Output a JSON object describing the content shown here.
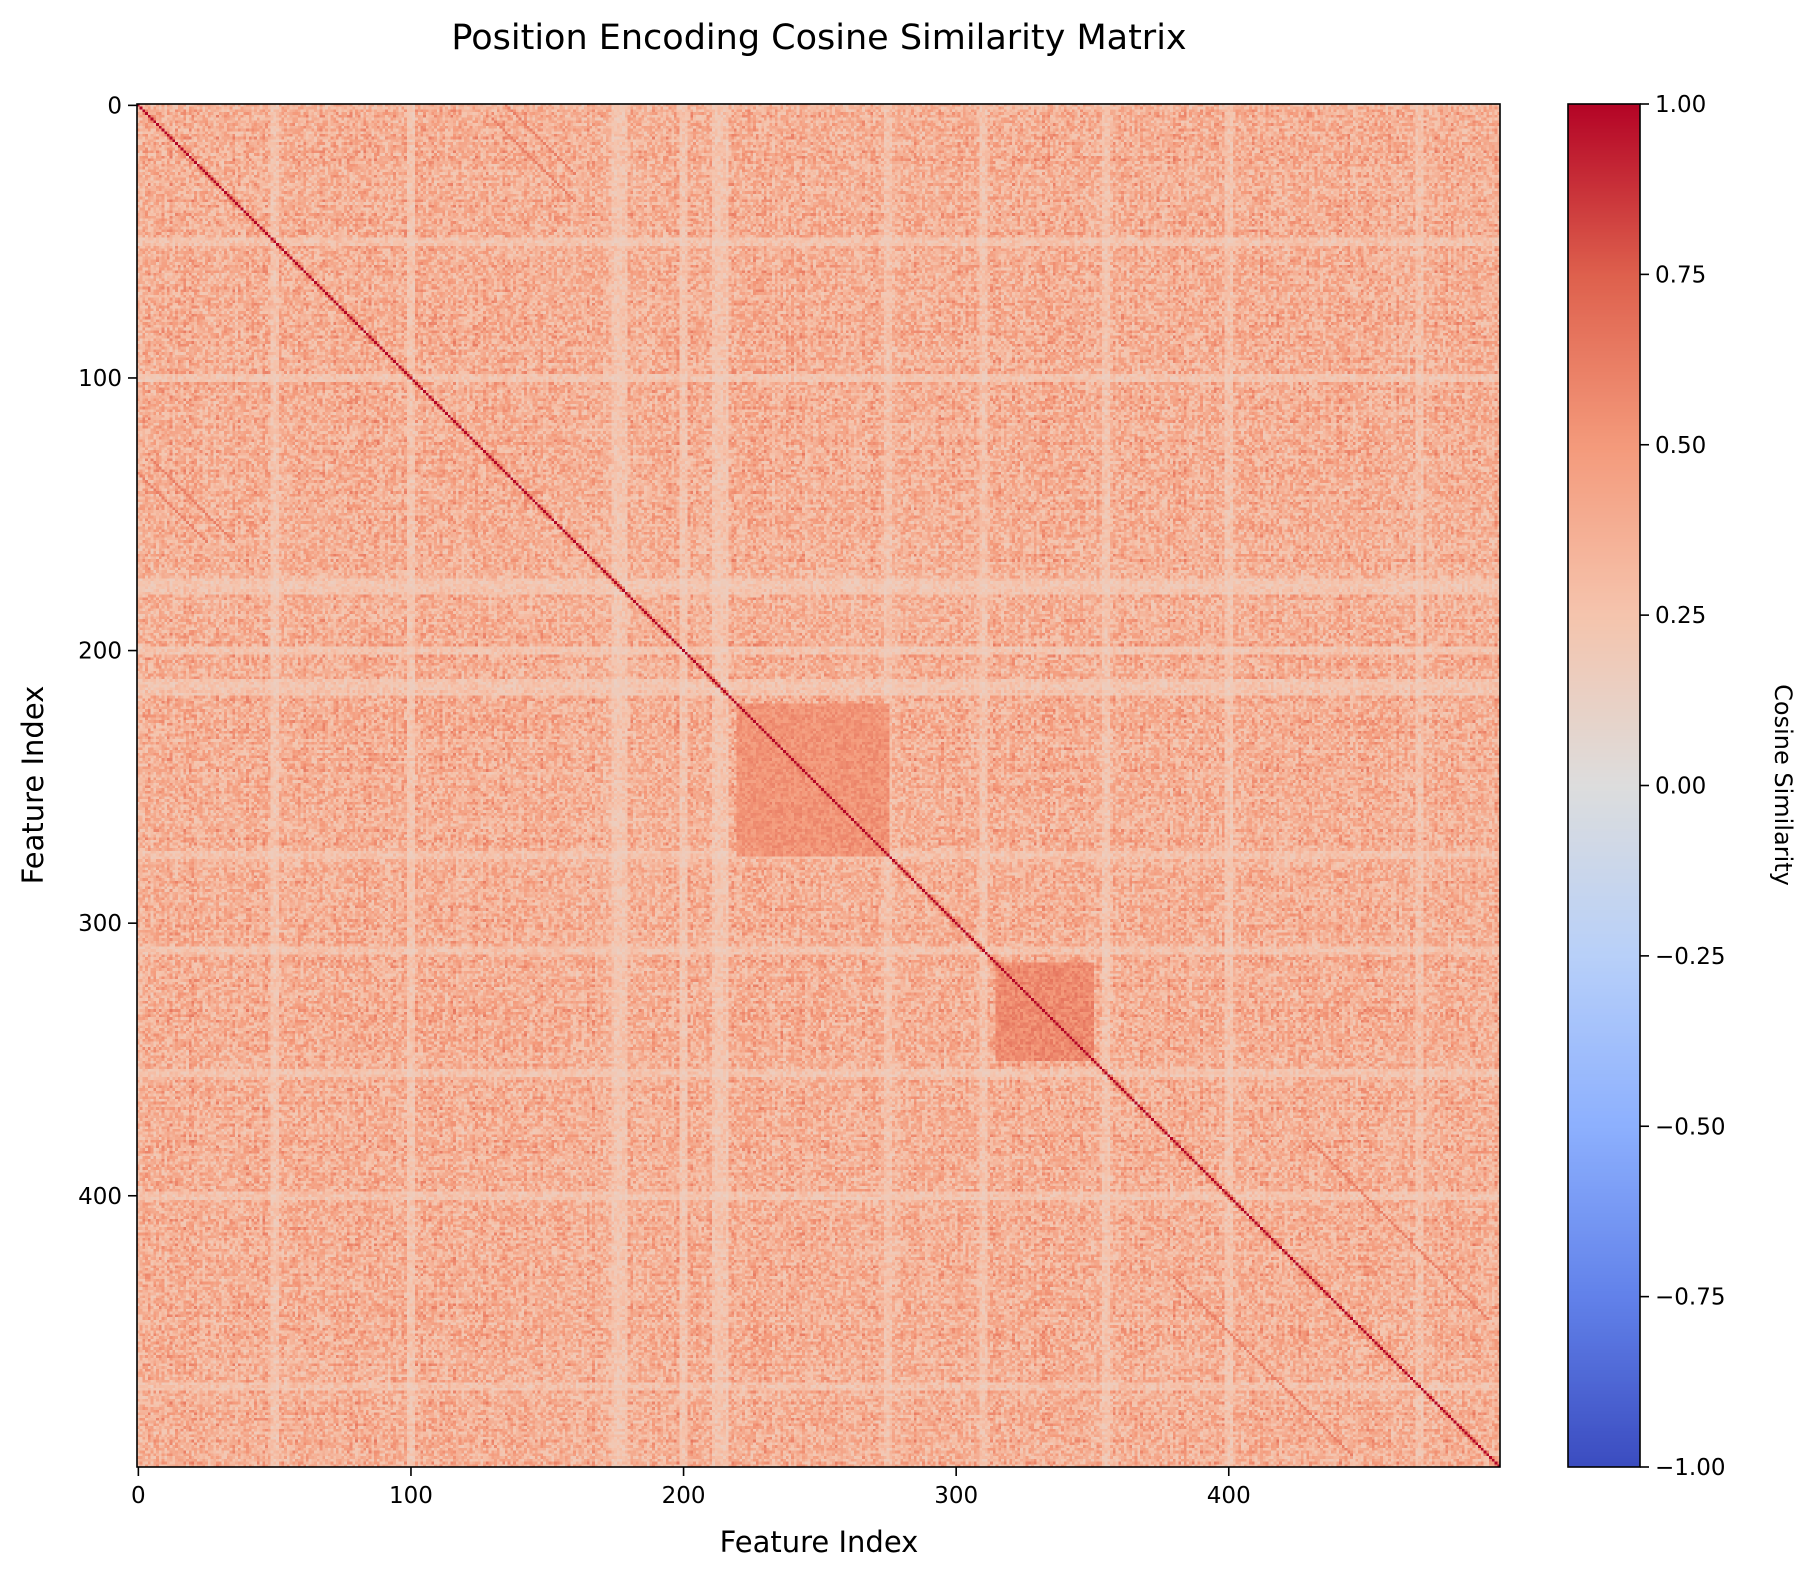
{
  "chart_data": {
    "type": "heatmap",
    "title": "Position Encoding Cosine Similarity Matrix",
    "xlabel": "Feature Index",
    "ylabel": "Feature Index",
    "colorbar_label": "Cosine Similarity",
    "colormap": "coolwarm",
    "matrix_size": 500,
    "xlim": [
      0,
      500
    ],
    "ylim": [
      500,
      0
    ],
    "vmin": -1.0,
    "vmax": 1.0,
    "x_ticks": [
      0,
      100,
      200,
      300,
      400
    ],
    "x_tick_labels": [
      "0",
      "100",
      "200",
      "300",
      "400"
    ],
    "y_ticks": [
      0,
      100,
      200,
      300,
      400
    ],
    "y_tick_labels": [
      "0",
      "100",
      "200",
      "300",
      "400"
    ],
    "colorbar_ticks": [
      1.0,
      0.75,
      0.5,
      0.25,
      0.0,
      -0.25,
      -0.5,
      -0.75,
      -1.0
    ],
    "colorbar_tick_labels": [
      "1.00",
      "0.75",
      "0.50",
      "0.25",
      "0.00",
      "−0.25",
      "−0.50",
      "−0.75",
      "−1.00"
    ],
    "diagonal_value": 1.0,
    "typical_offdiagonal_range": [
      0.1,
      0.55
    ],
    "high_similarity_blocks": [
      {
        "rows": [
          220,
          275
        ],
        "cols": [
          220,
          275
        ],
        "approx_value": 0.55
      },
      {
        "rows": [
          315,
          350
        ],
        "cols": [
          315,
          350
        ],
        "approx_value": 0.6
      }
    ],
    "off_diagonal_bands": [
      {
        "rows": [
          0,
          30
        ],
        "cols": [
          135,
          160
        ]
      },
      {
        "rows": [
          130,
          160
        ],
        "cols": [
          5,
          35
        ]
      },
      {
        "rows": [
          380,
          490
        ],
        "cols": [
          430,
          495
        ]
      }
    ],
    "low_similarity_rows_cols": [
      50,
      100,
      175,
      178,
      200,
      212,
      215,
      275,
      310,
      355,
      400,
      470
    ]
  }
}
